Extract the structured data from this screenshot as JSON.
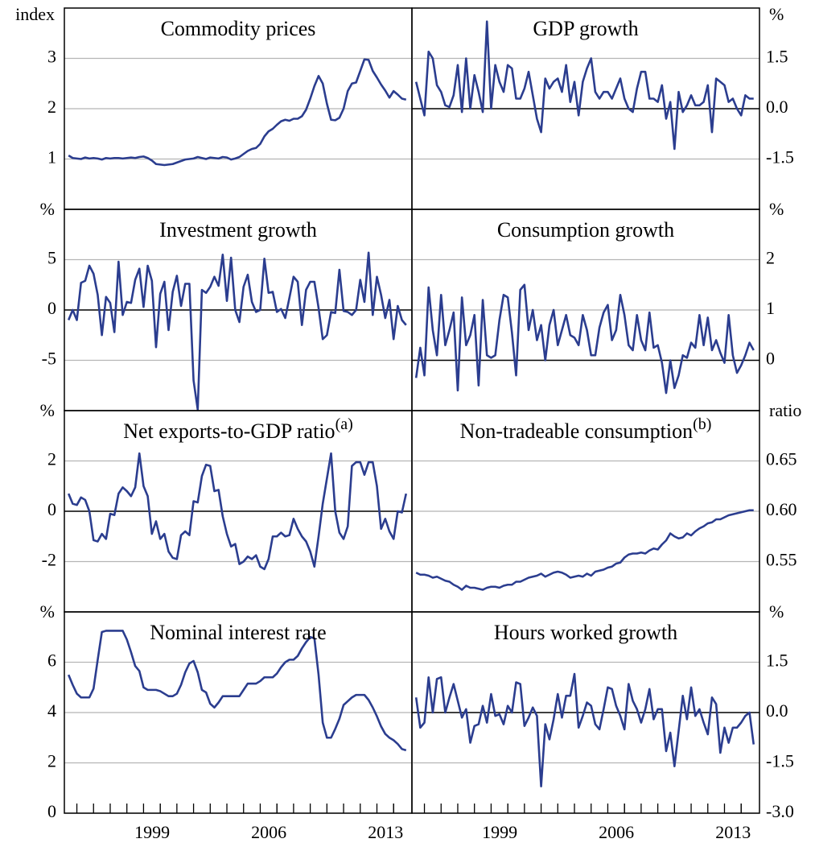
{
  "chart_data": {
    "type": "line",
    "color": "#2b3d8f",
    "x": [
      1993.5,
      1993.75,
      1994,
      1994.25,
      1994.5,
      1994.75,
      1995,
      1995.25,
      1995.5,
      1995.75,
      1996,
      1996.25,
      1996.5,
      1996.75,
      1997,
      1997.25,
      1997.5,
      1997.75,
      1998,
      1998.25,
      1998.5,
      1998.75,
      1999,
      1999.25,
      1999.5,
      1999.75,
      2000,
      2000.25,
      2000.5,
      2000.75,
      2001,
      2001.25,
      2001.5,
      2001.75,
      2002,
      2002.25,
      2002.5,
      2002.75,
      2003,
      2003.25,
      2003.5,
      2003.75,
      2004,
      2004.25,
      2004.5,
      2004.75,
      2005,
      2005.25,
      2005.5,
      2005.75,
      2006,
      2006.25,
      2006.5,
      2006.75,
      2007,
      2007.25,
      2007.5,
      2007.75,
      2008,
      2008.25,
      2008.5,
      2008.75,
      2009,
      2009.25,
      2009.5,
      2009.75,
      2010,
      2010.25,
      2010.5,
      2010.75,
      2011,
      2011.25,
      2011.5,
      2011.75,
      2012,
      2012.25,
      2012.5,
      2012.75,
      2013,
      2013.25,
      2013.5,
      2013.75
    ],
    "xlim": [
      1993.25,
      2014.1
    ],
    "xticks": [
      1999,
      2006,
      2013
    ],
    "xminorticks": [
      1994,
      1995,
      1996,
      1997,
      1998,
      1999,
      2000,
      2001,
      2002,
      2003,
      2004,
      2005,
      2006,
      2007,
      2008,
      2009,
      2010,
      2011,
      2012,
      2013
    ],
    "panels": [
      {
        "title": "Commodity prices",
        "unit": "index",
        "ylim": [
          0,
          4
        ],
        "yticks": [
          1,
          2,
          3
        ],
        "zero_line": false,
        "values": [
          1.07,
          1.02,
          1.01,
          1.0,
          1.03,
          1.01,
          1.02,
          1.01,
          0.99,
          1.02,
          1.01,
          1.02,
          1.02,
          1.01,
          1.02,
          1.03,
          1.02,
          1.04,
          1.05,
          1.02,
          0.97,
          0.9,
          0.89,
          0.88,
          0.89,
          0.9,
          0.93,
          0.96,
          0.99,
          1.0,
          1.01,
          1.04,
          1.02,
          1.0,
          1.03,
          1.02,
          1.01,
          1.04,
          1.03,
          0.99,
          1.01,
          1.04,
          1.1,
          1.16,
          1.2,
          1.22,
          1.3,
          1.45,
          1.55,
          1.6,
          1.68,
          1.75,
          1.78,
          1.76,
          1.8,
          1.8,
          1.85,
          1.98,
          2.2,
          2.45,
          2.65,
          2.5,
          2.1,
          1.78,
          1.77,
          1.82,
          2.0,
          2.35,
          2.5,
          2.52,
          2.75,
          2.98,
          2.97,
          2.75,
          2.62,
          2.48,
          2.36,
          2.22,
          2.35,
          2.28,
          2.2,
          2.18
        ]
      },
      {
        "title": "GDP growth",
        "unit": "%",
        "ylim": [
          -3,
          3
        ],
        "yticks": [
          -1.5,
          {
            "value": 0,
            "label": "0.0"
          },
          1.5
        ],
        "zero_line": true,
        "values": [
          0.8,
          0.3,
          -0.2,
          1.7,
          1.5,
          0.7,
          0.5,
          0.1,
          0.05,
          0.4,
          1.3,
          -0.1,
          1.5,
          0.0,
          1.0,
          0.5,
          -0.1,
          2.6,
          0.0,
          1.3,
          0.8,
          0.5,
          1.3,
          1.2,
          0.3,
          0.3,
          0.6,
          1.1,
          0.4,
          -0.3,
          -0.7,
          0.9,
          0.6,
          0.8,
          0.9,
          0.5,
          1.3,
          0.2,
          0.8,
          -0.2,
          0.8,
          1.2,
          1.5,
          0.5,
          0.3,
          0.5,
          0.5,
          0.3,
          0.6,
          0.9,
          0.3,
          0.0,
          -0.1,
          0.6,
          1.1,
          1.1,
          0.3,
          0.3,
          0.2,
          0.7,
          -0.3,
          0.2,
          -1.2,
          0.5,
          -0.1,
          0.1,
          0.4,
          0.1,
          0.1,
          0.2,
          0.7,
          -0.7,
          0.9,
          0.8,
          0.7,
          0.2,
          0.3,
          0.0,
          -0.2,
          0.4,
          0.3,
          0.3
        ]
      },
      {
        "title": "Investment growth",
        "unit": "%",
        "ylim": [
          -10,
          10
        ],
        "yticks": [
          -5,
          0,
          5
        ],
        "zero_line": true,
        "values": [
          -1.0,
          0.0,
          -1.0,
          2.7,
          2.9,
          4.4,
          3.6,
          1.5,
          -2.5,
          1.3,
          0.7,
          -2.2,
          4.8,
          -0.5,
          0.8,
          0.7,
          3.0,
          4.1,
          0.3,
          4.4,
          2.9,
          -3.7,
          1.6,
          2.8,
          -2.0,
          1.8,
          3.4,
          0.4,
          2.6,
          2.6,
          -7.0,
          -9.9,
          2.0,
          1.7,
          2.3,
          3.3,
          2.4,
          5.5,
          0.9,
          5.2,
          0.0,
          -1.2,
          2.3,
          3.5,
          0.8,
          -0.2,
          0.0,
          5.1,
          1.7,
          1.8,
          -0.2,
          0.1,
          -0.8,
          1.2,
          3.3,
          2.8,
          -1.5,
          2.0,
          2.8,
          2.8,
          0.2,
          -2.9,
          -2.5,
          -0.2,
          -0.3,
          4.0,
          -0.1,
          -0.2,
          -0.5,
          0.0,
          3.0,
          0.8,
          5.7,
          -0.5,
          3.3,
          1.5,
          -0.8,
          1.0,
          -2.9,
          0.4,
          -1.0,
          -1.5
        ]
      },
      {
        "title": "Consumption growth",
        "unit": "%",
        "ylim": [
          -1,
          3
        ],
        "yticks": [
          0,
          1,
          2
        ],
        "zero_line": true,
        "values": [
          -0.35,
          0.25,
          -0.3,
          1.45,
          0.6,
          0.1,
          1.3,
          0.3,
          0.6,
          0.95,
          -0.6,
          1.25,
          0.3,
          0.5,
          0.9,
          -0.5,
          1.2,
          0.1,
          0.05,
          0.1,
          0.8,
          1.3,
          1.25,
          0.55,
          -0.3,
          1.4,
          1.5,
          0.6,
          1.0,
          0.4,
          0.7,
          0.0,
          0.7,
          1.0,
          0.3,
          0.6,
          0.9,
          0.5,
          0.45,
          0.3,
          0.9,
          0.6,
          0.1,
          0.1,
          0.65,
          0.95,
          1.1,
          0.4,
          0.6,
          1.3,
          0.9,
          0.3,
          0.2,
          0.9,
          0.4,
          0.2,
          0.95,
          0.25,
          0.3,
          -0.05,
          -0.65,
          0.0,
          -0.55,
          -0.3,
          0.1,
          0.05,
          0.35,
          0.25,
          0.9,
          0.3,
          0.85,
          0.2,
          0.4,
          0.15,
          -0.05,
          0.9,
          0.1,
          -0.25,
          -0.1,
          0.1,
          0.35,
          0.2
        ]
      },
      {
        "title": "Net exports-to-GDP ratio",
        "title_note": "(a)",
        "unit": "%",
        "ylim": [
          -4,
          4
        ],
        "yticks": [
          -2,
          0,
          2
        ],
        "zero_line": true,
        "values": [
          0.7,
          0.3,
          0.25,
          0.55,
          0.45,
          0.0,
          -1.15,
          -1.2,
          -0.9,
          -1.1,
          -0.1,
          -0.15,
          0.7,
          0.95,
          0.8,
          0.6,
          0.95,
          2.3,
          1.0,
          0.6,
          -0.9,
          -0.4,
          -1.1,
          -0.9,
          -1.6,
          -1.85,
          -1.9,
          -0.95,
          -0.8,
          -0.95,
          0.4,
          0.35,
          1.4,
          1.85,
          1.8,
          0.8,
          0.85,
          -0.2,
          -0.9,
          -1.4,
          -1.3,
          -2.1,
          -2.0,
          -1.8,
          -1.9,
          -1.75,
          -2.2,
          -2.3,
          -1.9,
          -1.0,
          -1.0,
          -0.85,
          -1.0,
          -0.95,
          -0.3,
          -0.7,
          -1.0,
          -1.2,
          -1.6,
          -2.2,
          -1.0,
          0.3,
          1.3,
          2.3,
          0.0,
          -0.85,
          -1.1,
          -0.6,
          1.8,
          1.95,
          1.95,
          1.45,
          1.95,
          1.95,
          1.0,
          -0.7,
          -0.3,
          -0.8,
          -1.1,
          0.0,
          -0.05,
          0.7
        ]
      },
      {
        "title": "Non-tradeable consumption",
        "title_note": "(b)",
        "unit": "ratio",
        "ylim": [
          0.5,
          0.7
        ],
        "yticks": [
          0.55,
          {
            "value": 0.6,
            "label": "0.60"
          },
          0.65
        ],
        "zero_line": false,
        "values": [
          0.539,
          0.537,
          0.537,
          0.536,
          0.534,
          0.535,
          0.533,
          0.531,
          0.53,
          0.527,
          0.525,
          0.522,
          0.526,
          0.524,
          0.524,
          0.523,
          0.522,
          0.524,
          0.525,
          0.525,
          0.524,
          0.526,
          0.527,
          0.527,
          0.53,
          0.53,
          0.532,
          0.534,
          0.535,
          0.536,
          0.538,
          0.535,
          0.537,
          0.539,
          0.54,
          0.539,
          0.537,
          0.534,
          0.535,
          0.536,
          0.535,
          0.538,
          0.536,
          0.54,
          0.541,
          0.542,
          0.544,
          0.545,
          0.548,
          0.549,
          0.554,
          0.557,
          0.558,
          0.558,
          0.559,
          0.558,
          0.561,
          0.563,
          0.562,
          0.567,
          0.571,
          0.578,
          0.575,
          0.573,
          0.574,
          0.578,
          0.576,
          0.58,
          0.583,
          0.585,
          0.588,
          0.589,
          0.592,
          0.592,
          0.594,
          0.596,
          0.597,
          0.598,
          0.599,
          0.6,
          0.601,
          0.601
        ]
      },
      {
        "title": "Nominal interest rate",
        "unit": "%",
        "ylim": [
          0,
          8
        ],
        "yticks": [
          0,
          2,
          4,
          6
        ],
        "zero_line": false,
        "values": [
          5.5,
          5.1,
          4.75,
          4.6,
          4.6,
          4.6,
          4.95,
          6.1,
          7.2,
          7.25,
          7.25,
          7.25,
          7.25,
          7.25,
          6.9,
          6.4,
          5.85,
          5.65,
          5.0,
          4.9,
          4.9,
          4.9,
          4.85,
          4.75,
          4.65,
          4.65,
          4.75,
          5.1,
          5.6,
          5.95,
          6.05,
          5.6,
          4.9,
          4.8,
          4.35,
          4.2,
          4.4,
          4.65,
          4.65,
          4.65,
          4.65,
          4.65,
          4.9,
          5.15,
          5.15,
          5.15,
          5.25,
          5.4,
          5.4,
          5.4,
          5.55,
          5.8,
          6.0,
          6.1,
          6.1,
          6.25,
          6.55,
          6.8,
          7.0,
          6.95,
          5.5,
          3.6,
          3.0,
          3.0,
          3.35,
          3.75,
          4.3,
          4.45,
          4.6,
          4.7,
          4.7,
          4.7,
          4.5,
          4.2,
          3.85,
          3.45,
          3.15,
          3.0,
          2.9,
          2.75,
          2.55,
          2.5
        ]
      },
      {
        "title": "Hours worked growth",
        "unit": "%",
        "ylim": [
          -3,
          3
        ],
        "yticks": [
          {
            "value": -3,
            "label": "-3.0"
          },
          -1.5,
          {
            "value": 0,
            "label": "0.0"
          },
          1.5
        ],
        "zero_line": true,
        "values": [
          0.45,
          -0.45,
          -0.3,
          1.05,
          0.0,
          1.0,
          1.05,
          0.0,
          0.45,
          0.85,
          0.35,
          -0.15,
          0.1,
          -0.9,
          -0.4,
          -0.35,
          0.2,
          -0.3,
          0.55,
          -0.1,
          -0.05,
          -0.35,
          0.2,
          0.0,
          0.9,
          0.85,
          -0.4,
          -0.15,
          0.15,
          -0.1,
          -2.2,
          -0.35,
          -0.8,
          -0.2,
          0.55,
          -0.15,
          0.5,
          0.5,
          1.15,
          -0.45,
          -0.1,
          0.3,
          0.2,
          -0.35,
          -0.5,
          0.1,
          0.75,
          0.7,
          0.2,
          -0.1,
          -0.5,
          0.85,
          0.35,
          0.1,
          -0.3,
          0.1,
          0.7,
          -0.2,
          0.1,
          0.1,
          -1.15,
          -0.6,
          -1.6,
          -0.55,
          0.5,
          -0.2,
          0.75,
          -0.1,
          0.1,
          -0.3,
          -0.65,
          0.45,
          0.25,
          -1.2,
          -0.45,
          -0.9,
          -0.45,
          -0.45,
          -0.3,
          -0.1,
          0.0,
          -0.95
        ]
      }
    ]
  }
}
